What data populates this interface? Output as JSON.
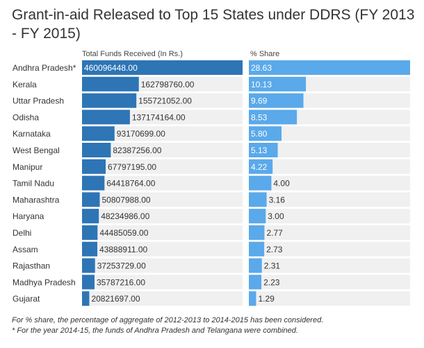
{
  "title": "Grant-in-aid Released to Top 15 States under DDRS (FY 2013 - FY 2015)",
  "columns": {
    "funds_header": "Total Funds Received (In Rs.)",
    "share_header": "% Share"
  },
  "footnotes": [
    "For % share, the percentage of aggregate of 2012-2013 to 2014-2015 has been considered.",
    "* For the year 2014-15, the funds of Andhra Pradesh and Telangana were combined."
  ],
  "colors": {
    "funds_bar": "#2e75b6",
    "share_bar": "#5aa9ea",
    "row_background": "#f0f0f0",
    "text": "#333333",
    "inside_label": "#ffffff"
  },
  "chart_data": {
    "type": "bar",
    "orientation": "horizontal",
    "categories": [
      "Andhra Pradesh*",
      "Kerala",
      "Uttar Pradesh",
      "Odisha",
      "Karnataka",
      "West Bengal",
      "Manipur",
      "Tamil Nadu",
      "Maharashtra",
      "Haryana",
      "Delhi",
      "Assam",
      "Rajasthan",
      "Madhya Pradesh",
      "Gujarat"
    ],
    "series": [
      {
        "name": "Total Funds Received (In Rs.)",
        "values": [
          460096448.0,
          162798760.0,
          155721052.0,
          137174164.0,
          93170699.0,
          82387256.0,
          67797195.0,
          64418764.0,
          50807988.0,
          48234986.0,
          44485059.0,
          43888911.0,
          37253729.0,
          35787216.0,
          20821697.0
        ],
        "labels": [
          "460096448.00",
          "162798760.00",
          "155721052.00",
          "137174164.00",
          "93170699.00",
          "82387256.00",
          "67797195.00",
          "64418764.00",
          "50807988.00",
          "48234986.00",
          "44485059.00",
          "43888911.00",
          "37253729.00",
          "35787216.00",
          "20821697.00"
        ],
        "xlim": [
          0,
          460096448.0
        ]
      },
      {
        "name": "% Share",
        "values": [
          28.63,
          10.13,
          9.69,
          8.53,
          5.8,
          5.13,
          4.22,
          4.0,
          3.16,
          3.0,
          2.77,
          2.73,
          2.31,
          2.23,
          1.29
        ],
        "labels": [
          "28.63",
          "10.13",
          "9.69",
          "8.53",
          "5.80",
          "5.13",
          "4.22",
          "4.00",
          "3.16",
          "3.00",
          "2.77",
          "2.73",
          "2.31",
          "2.23",
          "1.29"
        ],
        "xlim": [
          0,
          28.63
        ]
      }
    ]
  }
}
